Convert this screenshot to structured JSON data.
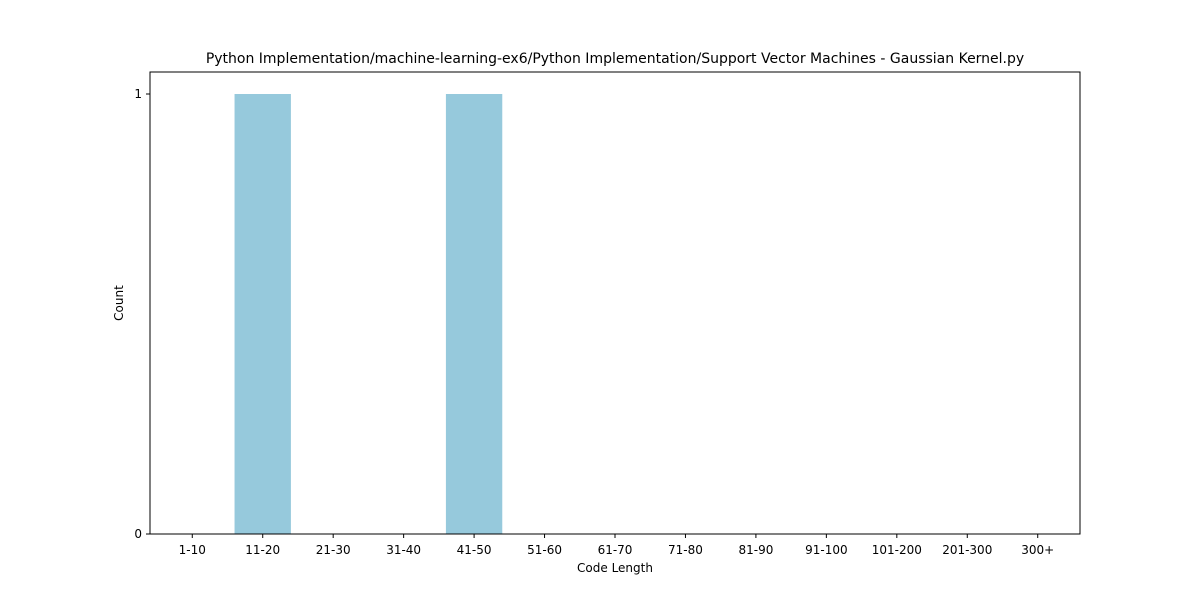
{
  "chart_data": {
    "type": "bar",
    "title": "Python Implementation/machine-learning-ex6/Python Implementation/Support Vector Machines - Gaussian Kernel.py",
    "xlabel": "Code Length",
    "ylabel": "Count",
    "categories": [
      "1-10",
      "11-20",
      "21-30",
      "31-40",
      "41-50",
      "51-60",
      "61-70",
      "71-80",
      "81-90",
      "91-100",
      "101-200",
      "201-300",
      "300+"
    ],
    "values": [
      0,
      1,
      0,
      0,
      1,
      0,
      0,
      0,
      0,
      0,
      0,
      0,
      0
    ],
    "yticks": [
      "0",
      "1"
    ],
    "ylim": [
      0,
      1.05
    ],
    "bar_color": "#96c9dc",
    "grid": false,
    "legend": "none"
  }
}
